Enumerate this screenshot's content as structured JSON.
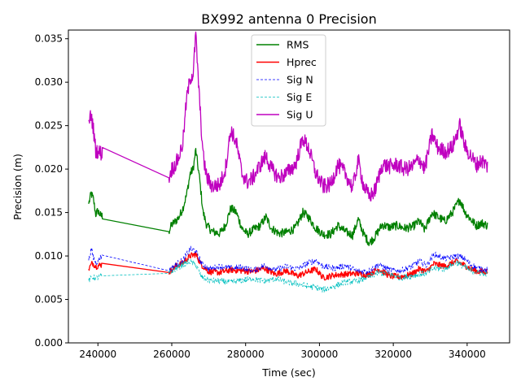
{
  "chart_data": {
    "type": "line",
    "title": "BX992 antenna 0 Precision",
    "xlabel": "Time (sec)",
    "ylabel": "Precision (m)",
    "xlim": [
      232000,
      351500
    ],
    "ylim": [
      0.0,
      0.036
    ],
    "xticks": [
      240000,
      260000,
      280000,
      300000,
      320000,
      340000
    ],
    "yticks": [
      0.0,
      0.005,
      0.01,
      0.015,
      0.02,
      0.025,
      0.03,
      0.035
    ],
    "legend_position": "top-center",
    "series": [
      {
        "name": "RMS",
        "color": "#008000",
        "style": "solid",
        "points": [
          [
            237500,
            0.016
          ],
          [
            238200,
            0.0172
          ],
          [
            238800,
            0.0165
          ],
          [
            239400,
            0.0148
          ],
          [
            240000,
            0.0152
          ],
          [
            240800,
            0.0146
          ],
          [
            241200,
            0.0146
          ],
          [
            259200,
            0.0128
          ],
          [
            260000,
            0.0136
          ],
          [
            261000,
            0.014
          ],
          [
            262000,
            0.0145
          ],
          [
            263000,
            0.0155
          ],
          [
            264000,
            0.017
          ],
          [
            265000,
            0.0195
          ],
          [
            265800,
            0.02
          ],
          [
            266500,
            0.0222
          ],
          [
            267500,
            0.019
          ],
          [
            268500,
            0.015
          ],
          [
            269500,
            0.0135
          ],
          [
            271000,
            0.0128
          ],
          [
            273000,
            0.0126
          ],
          [
            274500,
            0.0135
          ],
          [
            276000,
            0.0155
          ],
          [
            277500,
            0.015
          ],
          [
            279000,
            0.0132
          ],
          [
            280500,
            0.0125
          ],
          [
            282000,
            0.013
          ],
          [
            284000,
            0.0135
          ],
          [
            285500,
            0.0145
          ],
          [
            287000,
            0.0132
          ],
          [
            289000,
            0.0126
          ],
          [
            291000,
            0.0127
          ],
          [
            293500,
            0.0132
          ],
          [
            295500,
            0.015
          ],
          [
            297000,
            0.0145
          ],
          [
            299000,
            0.0132
          ],
          [
            301000,
            0.0125
          ],
          [
            303000,
            0.0125
          ],
          [
            305000,
            0.0135
          ],
          [
            307000,
            0.0128
          ],
          [
            309000,
            0.0124
          ],
          [
            310500,
            0.0142
          ],
          [
            312000,
            0.0125
          ],
          [
            313500,
            0.0115
          ],
          [
            315000,
            0.0122
          ],
          [
            317000,
            0.0136
          ],
          [
            319000,
            0.0133
          ],
          [
            321000,
            0.0135
          ],
          [
            323000,
            0.0132
          ],
          [
            325000,
            0.0133
          ],
          [
            327000,
            0.014
          ],
          [
            328500,
            0.013
          ],
          [
            330500,
            0.015
          ],
          [
            332000,
            0.0145
          ],
          [
            334000,
            0.014
          ],
          [
            336000,
            0.015
          ],
          [
            338000,
            0.0165
          ],
          [
            339500,
            0.015
          ],
          [
            341000,
            0.0142
          ],
          [
            342500,
            0.0135
          ],
          [
            344000,
            0.0138
          ],
          [
            345500,
            0.0135
          ]
        ]
      },
      {
        "name": "Hprec",
        "color": "#ff0000",
        "style": "solid",
        "points": [
          [
            237500,
            0.0085
          ],
          [
            238500,
            0.0092
          ],
          [
            239500,
            0.0088
          ],
          [
            241000,
            0.009
          ],
          [
            259200,
            0.0081
          ],
          [
            261000,
            0.0088
          ],
          [
            263000,
            0.0092
          ],
          [
            265000,
            0.01
          ],
          [
            266500,
            0.0102
          ],
          [
            268000,
            0.009
          ],
          [
            270000,
            0.0082
          ],
          [
            273000,
            0.0081
          ],
          [
            276000,
            0.0084
          ],
          [
            279000,
            0.0083
          ],
          [
            282000,
            0.0082
          ],
          [
            285000,
            0.0086
          ],
          [
            288000,
            0.0079
          ],
          [
            291000,
            0.0083
          ],
          [
            294000,
            0.0077
          ],
          [
            297000,
            0.0082
          ],
          [
            299000,
            0.0085
          ],
          [
            301000,
            0.0075
          ],
          [
            304000,
            0.0078
          ],
          [
            307000,
            0.0079
          ],
          [
            310000,
            0.008
          ],
          [
            313000,
            0.0078
          ],
          [
            316000,
            0.0085
          ],
          [
            319000,
            0.0077
          ],
          [
            322000,
            0.0076
          ],
          [
            325000,
            0.0079
          ],
          [
            327000,
            0.0085
          ],
          [
            329000,
            0.0082
          ],
          [
            331000,
            0.0091
          ],
          [
            334000,
            0.0088
          ],
          [
            337000,
            0.0094
          ],
          [
            339000,
            0.009
          ],
          [
            341000,
            0.0085
          ],
          [
            343000,
            0.0082
          ],
          [
            345500,
            0.0082
          ]
        ]
      },
      {
        "name": "Sig N",
        "color": "#0000ff",
        "style": "dashed",
        "points": [
          [
            237500,
            0.0095
          ],
          [
            238200,
            0.0108
          ],
          [
            238800,
            0.0098
          ],
          [
            239500,
            0.0092
          ],
          [
            241000,
            0.01
          ],
          [
            259200,
            0.0083
          ],
          [
            261000,
            0.009
          ],
          [
            263000,
            0.0095
          ],
          [
            265000,
            0.0108
          ],
          [
            266500,
            0.0106
          ],
          [
            268000,
            0.0092
          ],
          [
            270000,
            0.0085
          ],
          [
            273000,
            0.0088
          ],
          [
            276000,
            0.0086
          ],
          [
            279000,
            0.0087
          ],
          [
            282000,
            0.0083
          ],
          [
            285000,
            0.0089
          ],
          [
            288000,
            0.0084
          ],
          [
            291000,
            0.0088
          ],
          [
            294000,
            0.0085
          ],
          [
            297000,
            0.0092
          ],
          [
            299000,
            0.0095
          ],
          [
            301000,
            0.0088
          ],
          [
            304000,
            0.0086
          ],
          [
            307000,
            0.0089
          ],
          [
            310000,
            0.0083
          ],
          [
            313000,
            0.0082
          ],
          [
            316000,
            0.009
          ],
          [
            319000,
            0.0084
          ],
          [
            322000,
            0.0083
          ],
          [
            325000,
            0.0088
          ],
          [
            327000,
            0.0094
          ],
          [
            329000,
            0.0089
          ],
          [
            331000,
            0.0102
          ],
          [
            334000,
            0.0097
          ],
          [
            337000,
            0.01
          ],
          [
            339000,
            0.0098
          ],
          [
            341000,
            0.009
          ],
          [
            343000,
            0.0086
          ],
          [
            345500,
            0.0084
          ]
        ]
      },
      {
        "name": "Sig E",
        "color": "#00bfbf",
        "style": "dashed",
        "points": [
          [
            237500,
            0.0072
          ],
          [
            238500,
            0.0076
          ],
          [
            239500,
            0.0074
          ],
          [
            241000,
            0.0078
          ],
          [
            259200,
            0.008
          ],
          [
            261000,
            0.0085
          ],
          [
            263000,
            0.009
          ],
          [
            265000,
            0.0094
          ],
          [
            266500,
            0.009
          ],
          [
            268000,
            0.0076
          ],
          [
            270000,
            0.0072
          ],
          [
            273000,
            0.0071
          ],
          [
            276000,
            0.007
          ],
          [
            279000,
            0.0072
          ],
          [
            282000,
            0.0074
          ],
          [
            285000,
            0.0071
          ],
          [
            288000,
            0.0074
          ],
          [
            291000,
            0.007
          ],
          [
            294000,
            0.0068
          ],
          [
            297000,
            0.0065
          ],
          [
            299000,
            0.0064
          ],
          [
            301000,
            0.0061
          ],
          [
            304000,
            0.0065
          ],
          [
            307000,
            0.007
          ],
          [
            310000,
            0.0071
          ],
          [
            313000,
            0.0075
          ],
          [
            316000,
            0.0081
          ],
          [
            319000,
            0.0079
          ],
          [
            322000,
            0.0075
          ],
          [
            325000,
            0.0077
          ],
          [
            327000,
            0.0079
          ],
          [
            329000,
            0.008
          ],
          [
            331000,
            0.0086
          ],
          [
            334000,
            0.0085
          ],
          [
            337000,
            0.0093
          ],
          [
            339000,
            0.0088
          ],
          [
            341000,
            0.0083
          ],
          [
            343000,
            0.0081
          ],
          [
            345500,
            0.0079
          ]
        ]
      },
      {
        "name": "Sig U",
        "color": "#bf00bf",
        "style": "solid",
        "points": [
          [
            237500,
            0.0255
          ],
          [
            238200,
            0.0262
          ],
          [
            238800,
            0.0245
          ],
          [
            239400,
            0.0222
          ],
          [
            240000,
            0.022
          ],
          [
            241200,
            0.0218
          ],
          [
            259200,
            0.019
          ],
          [
            260000,
            0.02
          ],
          [
            261000,
            0.0205
          ],
          [
            262000,
            0.0215
          ],
          [
            263000,
            0.023
          ],
          [
            264000,
            0.028
          ],
          [
            265000,
            0.0305
          ],
          [
            265800,
            0.031
          ],
          [
            266500,
            0.0355
          ],
          [
            267500,
            0.028
          ],
          [
            268500,
            0.0215
          ],
          [
            269500,
            0.019
          ],
          [
            271000,
            0.018
          ],
          [
            273000,
            0.0182
          ],
          [
            274500,
            0.02
          ],
          [
            276000,
            0.0245
          ],
          [
            277500,
            0.023
          ],
          [
            279000,
            0.0195
          ],
          [
            280500,
            0.0185
          ],
          [
            282000,
            0.019
          ],
          [
            284000,
            0.0205
          ],
          [
            285500,
            0.0215
          ],
          [
            287000,
            0.02
          ],
          [
            289000,
            0.019
          ],
          [
            291000,
            0.0195
          ],
          [
            293500,
            0.0205
          ],
          [
            295500,
            0.0235
          ],
          [
            297000,
            0.0225
          ],
          [
            299000,
            0.0195
          ],
          [
            301000,
            0.018
          ],
          [
            303000,
            0.0182
          ],
          [
            305000,
            0.0205
          ],
          [
            307000,
            0.0195
          ],
          [
            309000,
            0.0178
          ],
          [
            310500,
            0.021
          ],
          [
            312000,
            0.018
          ],
          [
            313500,
            0.0168
          ],
          [
            315000,
            0.0175
          ],
          [
            317000,
            0.0205
          ],
          [
            319000,
            0.0203
          ],
          [
            321000,
            0.0205
          ],
          [
            323000,
            0.02
          ],
          [
            325000,
            0.0202
          ],
          [
            327000,
            0.0212
          ],
          [
            328500,
            0.02
          ],
          [
            330500,
            0.024
          ],
          [
            332000,
            0.0225
          ],
          [
            334000,
            0.022
          ],
          [
            336000,
            0.0225
          ],
          [
            338000,
            0.025
          ],
          [
            339500,
            0.0225
          ],
          [
            341000,
            0.0215
          ],
          [
            342500,
            0.0205
          ],
          [
            344000,
            0.021
          ],
          [
            345500,
            0.0203
          ]
        ]
      }
    ]
  }
}
